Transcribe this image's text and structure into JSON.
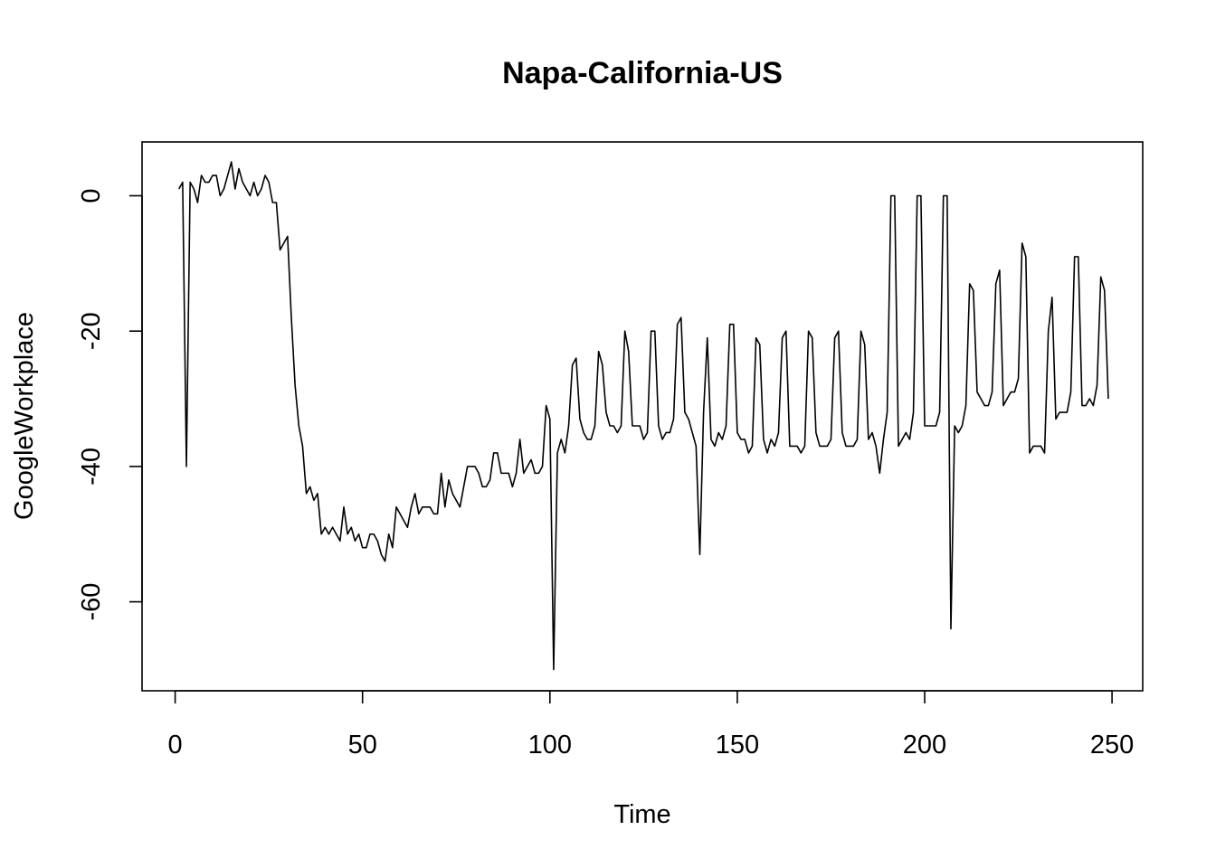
{
  "chart_data": {
    "type": "line",
    "title": "Napa-California-US",
    "xlabel": "Time",
    "ylabel": "GoogleWorkplace",
    "xlim": [
      0,
      250
    ],
    "ylim": [
      -72,
      4
    ],
    "x_ticks": [
      0,
      50,
      100,
      150,
      200,
      250
    ],
    "x_tick_labels": [
      "0",
      "50",
      "100",
      "150",
      "200",
      "250"
    ],
    "y_ticks": [
      0,
      -20,
      -40,
      -60
    ],
    "y_tick_labels": [
      "0",
      "-20",
      "-40",
      "-60"
    ],
    "grid": false,
    "legend": "none",
    "line_color": "#000000",
    "x_start": 1,
    "x_step": 1,
    "series": [
      {
        "values": [
          1,
          2,
          -40,
          2,
          1,
          -1,
          3,
          2,
          2,
          3,
          3,
          0,
          1,
          3,
          5,
          1,
          4,
          2,
          1,
          0,
          2,
          0,
          1,
          3,
          2,
          -1,
          -1,
          -8,
          -7,
          -6,
          -18,
          -28,
          -34,
          -37,
          -44,
          -43,
          -45,
          -44,
          -50,
          -49,
          -50,
          -49,
          -50,
          -51,
          -46,
          -50,
          -49,
          -51,
          -50,
          -52,
          -52,
          -50,
          -50,
          -51,
          -53,
          -54,
          -50,
          -52,
          -46,
          -47,
          -48,
          -49,
          -46,
          -44,
          -47,
          -46,
          -46,
          -46,
          -47,
          -47,
          -41,
          -46,
          -42,
          -44,
          -45,
          -46,
          -43,
          -40,
          -40,
          -40,
          -41,
          -43,
          -43,
          -42,
          -38,
          -38,
          -41,
          -41,
          -41,
          -43,
          -41,
          -36,
          -41,
          -40,
          -39,
          -41,
          -41,
          -40,
          -31,
          -33,
          -70,
          -38,
          -36,
          -38,
          -34,
          -25,
          -24,
          -33,
          -35,
          -36,
          -36,
          -34,
          -23,
          -25,
          -32,
          -34,
          -34,
          -35,
          -34,
          -20,
          -23,
          -34,
          -34,
          -34,
          -36,
          -35,
          -20,
          -20,
          -34,
          -36,
          -35,
          -35,
          -33,
          -19,
          -18,
          -32,
          -33,
          -35,
          -37,
          -53,
          -32,
          -21,
          -36,
          -37,
          -35,
          -36,
          -34,
          -19,
          -19,
          -35,
          -36,
          -36,
          -38,
          -37,
          -21,
          -22,
          -36,
          -38,
          -36,
          -37,
          -35,
          -21,
          -20,
          -37,
          -37,
          -37,
          -38,
          -37,
          -20,
          -21,
          -35,
          -37,
          -37,
          -37,
          -36,
          -21,
          -20,
          -35,
          -37,
          -37,
          -37,
          -36,
          -20,
          -22,
          -36,
          -35,
          -37,
          -41,
          -36,
          -32,
          0,
          0,
          -37,
          -36,
          -35,
          -36,
          -32,
          0,
          0,
          -34,
          -34,
          -34,
          -34,
          -32,
          0,
          0,
          -64,
          -34,
          -35,
          -34,
          -31,
          -13,
          -14,
          -29,
          -30,
          -31,
          -31,
          -29,
          -13,
          -11,
          -31,
          -30,
          -29,
          -29,
          -27,
          -7,
          -9,
          -38,
          -37,
          -37,
          -37,
          -38,
          -20,
          -15,
          -33,
          -32,
          -32,
          -32,
          -29,
          -9,
          -9,
          -31,
          -31,
          -30,
          -31,
          -28,
          -12,
          -14,
          -30
        ]
      }
    ]
  }
}
